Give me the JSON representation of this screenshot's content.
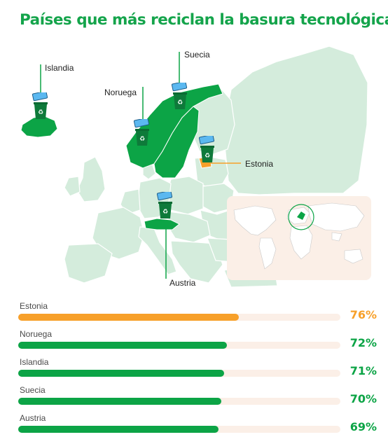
{
  "title": "Países que más reciclan la basura tecnológica",
  "colors": {
    "title": "#14a44b",
    "green": "#0ca446",
    "orange": "#f7a02a",
    "land": "#d4ecdc",
    "ocean": "#ffffff",
    "track": "#fbefe7",
    "inset_bg": "#fbefe7"
  },
  "map": {
    "highlighted": [
      {
        "name": "Islandia",
        "color": "green"
      },
      {
        "name": "Noruega",
        "color": "green"
      },
      {
        "name": "Suecia",
        "color": "green"
      },
      {
        "name": "Estonia",
        "color": "orange"
      },
      {
        "name": "Austria",
        "color": "green"
      }
    ],
    "marker_icon": "recycling-bin-icon",
    "device_icon": "tablet-device-icon",
    "inset_description_icon": "world-map-inset"
  },
  "labels": {
    "islandia": "Islandia",
    "noruega": "Noruega",
    "suecia": "Suecia",
    "estonia": "Estonia",
    "austria": "Austria"
  },
  "chart_data": {
    "type": "bar",
    "orientation": "horizontal",
    "categories": [
      "Estonia",
      "Noruega",
      "Islandia",
      "Suecia",
      "Austria"
    ],
    "values": [
      76,
      72,
      71,
      70,
      69
    ],
    "value_labels": [
      "76%",
      "72%",
      "71%",
      "70%",
      "69%"
    ],
    "colors": [
      "orange",
      "green",
      "green",
      "green",
      "green"
    ],
    "unit": "%"
  }
}
